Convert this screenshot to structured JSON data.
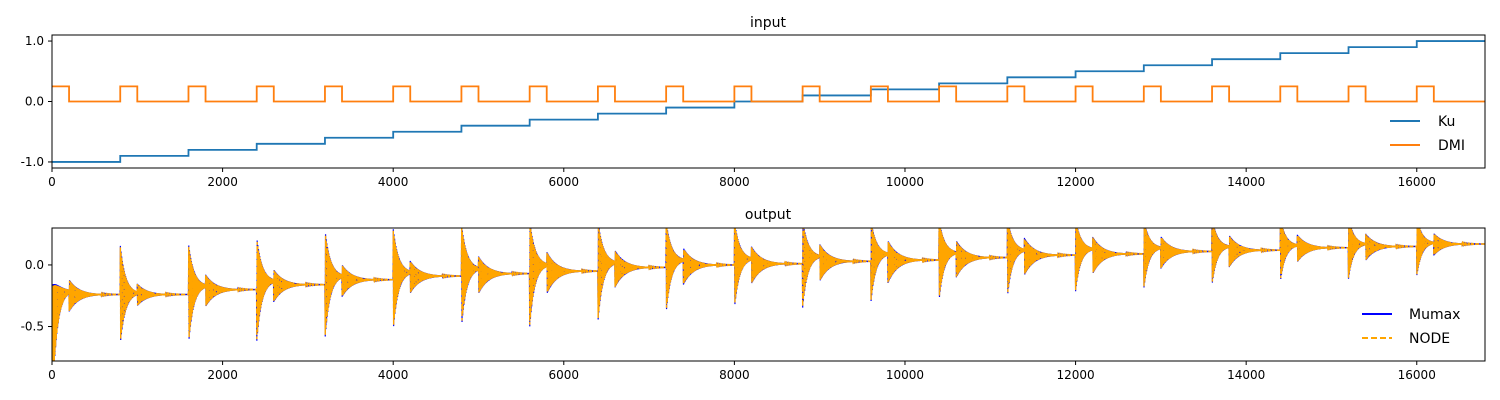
{
  "chart_data": [
    {
      "type": "line",
      "title": "input",
      "xlabel": "",
      "ylabel": "",
      "xlim": [
        0,
        16800
      ],
      "ylim": [
        -1.1,
        1.1
      ],
      "xticks": [
        0,
        2000,
        4000,
        6000,
        8000,
        10000,
        12000,
        14000,
        16000
      ],
      "xtick_labels": [
        "0",
        "2000",
        "4000",
        "6000",
        "8000",
        "10000",
        "12000",
        "14000",
        "16000"
      ],
      "yticks": [
        1.0,
        0.0,
        -1.0
      ],
      "ytick_labels": [
        "1.0",
        "0.0",
        "-1.0"
      ],
      "legend": "lower-right",
      "series": [
        {
          "name": "Ku",
          "color": "#1f77b4",
          "step": "post",
          "x": [
            0,
            800,
            1600,
            2400,
            3200,
            4000,
            4800,
            5600,
            6400,
            7200,
            8000,
            8800,
            9600,
            10400,
            11200,
            12000,
            12800,
            13600,
            14400,
            15200,
            16000,
            16800
          ],
          "y": [
            -1.0,
            -0.9,
            -0.8,
            -0.7,
            -0.6,
            -0.5,
            -0.4,
            -0.3,
            -0.2,
            -0.1,
            0.0,
            0.1,
            0.2,
            0.3,
            0.4,
            0.5,
            0.6,
            0.7,
            0.8,
            0.9,
            1.0,
            1.0
          ]
        },
        {
          "name": "DMI",
          "color": "#ff7f0e",
          "pulse_high": 0.25,
          "pulse_low": 0.0,
          "pulse_width": 200,
          "pulse_starts": [
            0,
            800,
            1600,
            2400,
            3200,
            4000,
            4800,
            5600,
            6400,
            7200,
            8000,
            8800,
            9600,
            10400,
            11200,
            12000,
            12800,
            13600,
            14400,
            15200,
            16000
          ]
        }
      ]
    },
    {
      "type": "line",
      "title": "output",
      "xlabel": "",
      "ylabel": "",
      "xlim": [
        0,
        16800
      ],
      "ylim": [
        -0.78,
        0.3
      ],
      "xticks": [
        0,
        2000,
        4000,
        6000,
        8000,
        10000,
        12000,
        14000,
        16000
      ],
      "xtick_labels": [
        "0",
        "2000",
        "4000",
        "6000",
        "8000",
        "10000",
        "12000",
        "14000",
        "16000"
      ],
      "yticks": [
        0.0,
        -0.5
      ],
      "ytick_labels": [
        "0.0",
        "-0.5"
      ],
      "legend": "lower-right",
      "segment_length": 800,
      "pulse_width": 200,
      "pulse_plateau": [
        -0.21,
        -0.23,
        -0.17,
        -0.13,
        -0.09,
        -0.06,
        -0.03,
        0.0,
        0.02,
        0.04,
        0.05,
        0.07,
        0.09,
        0.1,
        0.12,
        0.13,
        0.14,
        0.15,
        0.16,
        0.17,
        0.18
      ],
      "settle_level": [
        -0.24,
        -0.24,
        -0.2,
        -0.16,
        -0.12,
        -0.09,
        -0.07,
        -0.05,
        -0.02,
        0.0,
        0.01,
        0.03,
        0.04,
        0.06,
        0.08,
        0.09,
        0.11,
        0.12,
        0.14,
        0.15,
        0.17
      ],
      "start_peak": [
        -0.68,
        -0.6,
        -0.55,
        -0.52,
        -0.5,
        -0.44,
        -0.42,
        -0.4,
        -0.36,
        -0.3,
        -0.28,
        -0.26,
        -0.22,
        -0.2,
        -0.18,
        -0.14,
        -0.12,
        -0.1,
        -0.08,
        -0.06,
        -0.04
      ],
      "series": [
        {
          "name": "Mumax",
          "color": "#0000ff",
          "style": "solid"
        },
        {
          "name": "NODE",
          "color": "#ffa500",
          "style": "dashed"
        }
      ]
    }
  ]
}
